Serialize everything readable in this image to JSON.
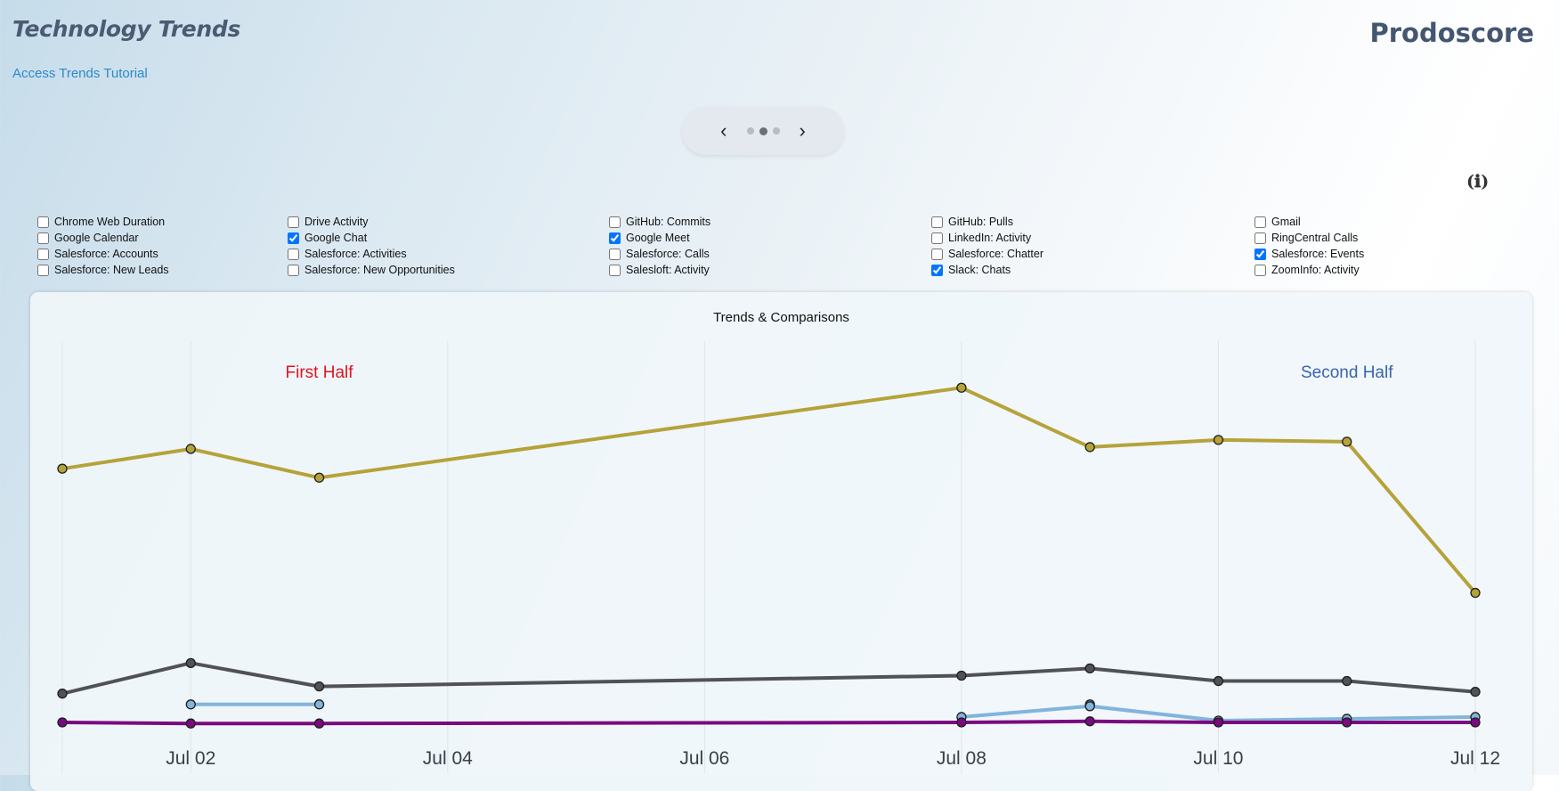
{
  "header": {
    "title": "Technology Trends",
    "tutorial_link": "Access Trends Tutorial",
    "brand": "Prodoscore"
  },
  "pager": {
    "prev": "‹",
    "next": "›",
    "pages": 3,
    "active": 1
  },
  "info_icon": "(ℹ)",
  "filters": [
    [
      {
        "label": "Chrome Web Duration",
        "checked": false
      },
      {
        "label": "Google Calendar",
        "checked": false
      },
      {
        "label": "Salesforce: Accounts",
        "checked": false
      },
      {
        "label": "Salesforce: New Leads",
        "checked": false
      }
    ],
    [
      {
        "label": "Drive Activity",
        "checked": false
      },
      {
        "label": "Google Chat",
        "checked": true
      },
      {
        "label": "Salesforce: Activities",
        "checked": false
      },
      {
        "label": "Salesforce: New Opportunities",
        "checked": false
      }
    ],
    [
      {
        "label": "GitHub: Commits",
        "checked": false
      },
      {
        "label": "Google Meet",
        "checked": true
      },
      {
        "label": "Salesforce: Calls",
        "checked": false
      },
      {
        "label": "Salesloft: Activity",
        "checked": false
      }
    ],
    [
      {
        "label": "GitHub: Pulls",
        "checked": false
      },
      {
        "label": "LinkedIn: Activity",
        "checked": false
      },
      {
        "label": "Salesforce: Chatter",
        "checked": false
      },
      {
        "label": "Slack: Chats",
        "checked": true
      }
    ],
    [
      {
        "label": "Gmail",
        "checked": false
      },
      {
        "label": "RingCentral Calls",
        "checked": false
      },
      {
        "label": "Salesforce: Events",
        "checked": true
      },
      {
        "label": "ZoomInfo: Activity",
        "checked": false
      }
    ]
  ],
  "chart_data": {
    "type": "line",
    "title": "Trends & Comparisons",
    "annotations": [
      {
        "text": "First Half",
        "color": "#e0141e",
        "x": "Jul 03"
      },
      {
        "text": "Second Half",
        "color": "#3b64ad",
        "x": "Jul 11"
      }
    ],
    "x": [
      "Jul 01",
      "Jul 02",
      "Jul 03",
      "Jul 08",
      "Jul 09",
      "Jul 10",
      "Jul 11",
      "Jul 12"
    ],
    "x_ticks": [
      "Jul 02",
      "Jul 04",
      "Jul 06",
      "Jul 08",
      "Jul 10",
      "Jul 12"
    ],
    "x_range": [
      "Jul 01",
      "Jul 12"
    ],
    "ylim": [
      0,
      100
    ],
    "grid": true,
    "series": [
      {
        "color": "#b5a33a",
        "values": [
          70.5,
          76,
          68,
          93,
          76.5,
          78.5,
          78,
          36
        ]
      },
      {
        "color": "#505256",
        "values": [
          8,
          16.5,
          10,
          13,
          15,
          11.5,
          11.5,
          8.5
        ]
      },
      {
        "color": "#82b4dc",
        "values": [
          null,
          5,
          5,
          null,
          5,
          null,
          null,
          null
        ]
      },
      {
        "color": "#82b4dc",
        "values": [
          null,
          null,
          null,
          1.5,
          4.5,
          0.5,
          1,
          1.5
        ]
      },
      {
        "color": "#7a0a7f",
        "values": [
          0,
          -0.3,
          -0.3,
          0,
          0.3,
          0,
          0,
          0
        ]
      }
    ]
  }
}
